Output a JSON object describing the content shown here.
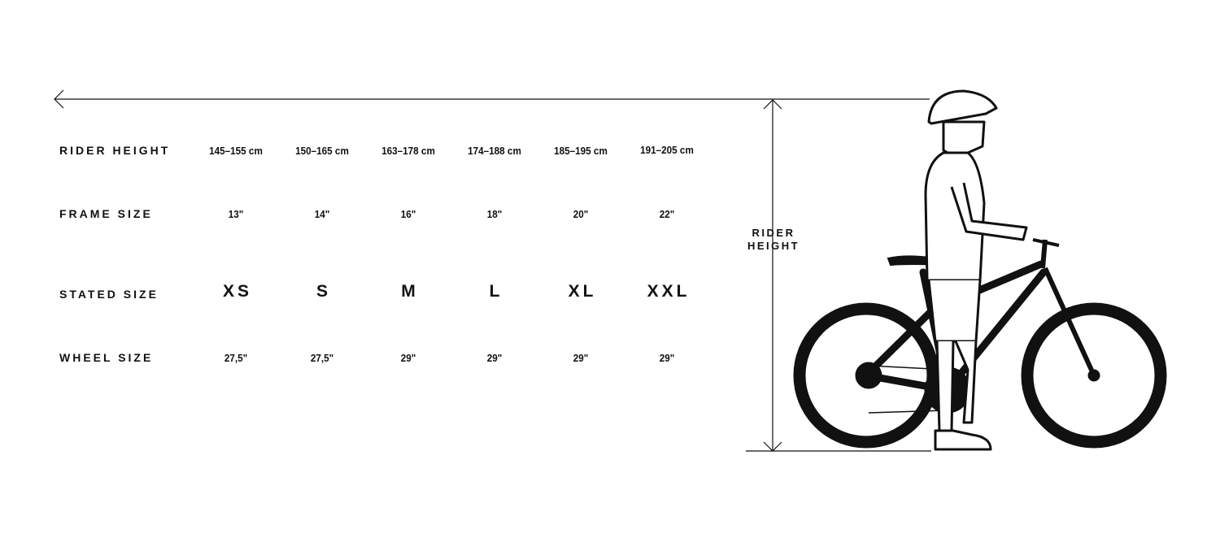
{
  "rows": [
    {
      "label": "RIDER HEIGHT",
      "values": [
        "145–155 cm",
        "150–165 cm",
        "163–178 cm",
        "174–188 cm",
        "185–195 cm",
        "191–205 cm"
      ]
    },
    {
      "label": "FRAME SIZE",
      "values": [
        "13\"",
        "14\"",
        "16\"",
        "18\"",
        "20\"",
        "22\""
      ]
    },
    {
      "label": "STATED SIZE",
      "values": [
        "XS",
        "S",
        "M",
        "L",
        "XL",
        "XXL"
      ]
    },
    {
      "label": "WHEEL SIZE",
      "values": [
        "27,5\"",
        "27,5\"",
        "29\"",
        "29\"",
        "29\"",
        "29\""
      ]
    }
  ],
  "diagram": {
    "rider_height_line1": "RIDER",
    "rider_height_line2": "HEIGHT"
  },
  "colors": {
    "ink": "#111111",
    "background": "#ffffff"
  }
}
